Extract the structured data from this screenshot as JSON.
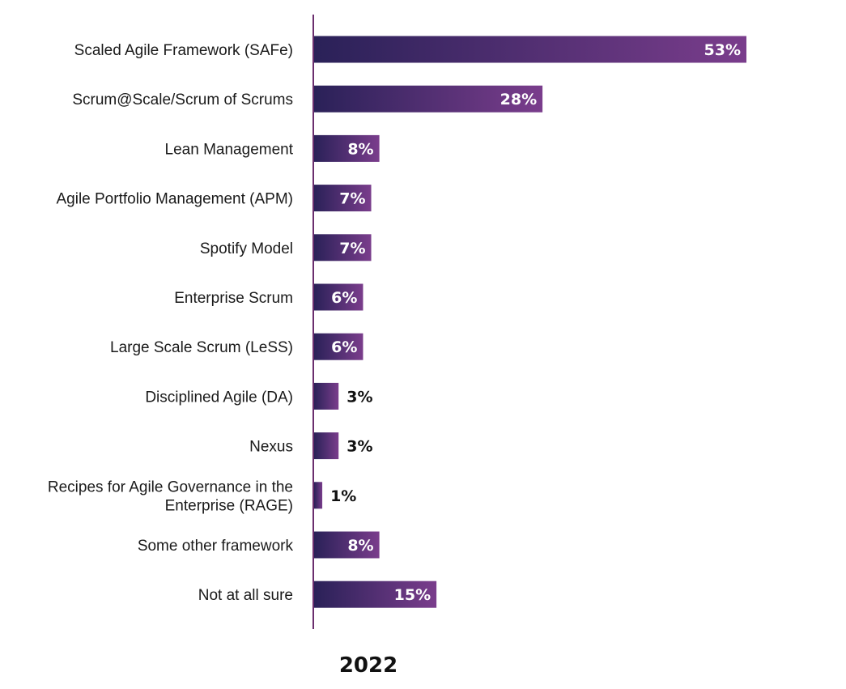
{
  "chart_data": {
    "type": "bar",
    "orientation": "horizontal",
    "xlabel": "2022",
    "ylabel": "",
    "xlim": [
      0,
      53
    ],
    "grid": false,
    "legend": "none",
    "value_suffix": "%",
    "categories": [
      [
        "Scaled Agile Framework (SAFe)"
      ],
      [
        "Scrum@Scale/Scrum of Scrums"
      ],
      [
        "Lean Management"
      ],
      [
        "Agile Portfolio Management (APM)"
      ],
      [
        "Spotify Model"
      ],
      [
        "Enterprise Scrum"
      ],
      [
        "Large Scale Scrum (LeSS)"
      ],
      [
        "Disciplined Agile (DA)"
      ],
      [
        "Nexus"
      ],
      [
        "Recipes for Agile Governance in the",
        "Enterprise (RAGE)"
      ],
      [
        "Some other framework"
      ],
      [
        "Not at all sure"
      ]
    ],
    "values": [
      53,
      28,
      8,
      7,
      7,
      6,
      6,
      3,
      3,
      1,
      8,
      15
    ],
    "colors": {
      "bar_start": "#2a2158",
      "bar_end": "#7a3d8c",
      "axis": "#6b2f6e",
      "label_inside": "#ffffff",
      "label_outside": "#111111"
    }
  }
}
